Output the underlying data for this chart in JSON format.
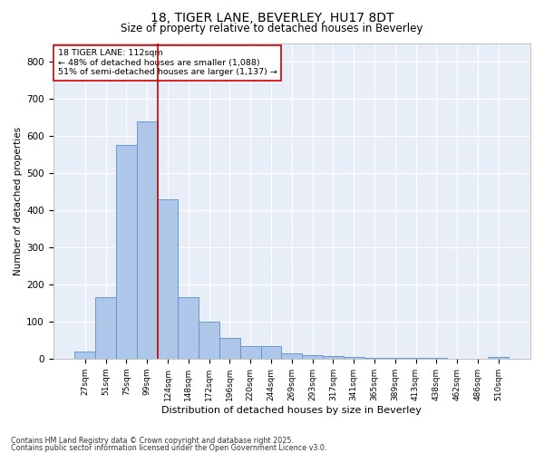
{
  "title1": "18, TIGER LANE, BEVERLEY, HU17 8DT",
  "title2": "Size of property relative to detached houses in Beverley",
  "xlabel": "Distribution of detached houses by size in Beverley",
  "ylabel": "Number of detached properties",
  "categories": [
    "27sqm",
    "51sqm",
    "75sqm",
    "99sqm",
    "124sqm",
    "148sqm",
    "172sqm",
    "196sqm",
    "220sqm",
    "244sqm",
    "269sqm",
    "293sqm",
    "317sqm",
    "341sqm",
    "365sqm",
    "389sqm",
    "413sqm",
    "438sqm",
    "462sqm",
    "486sqm",
    "510sqm"
  ],
  "values": [
    20,
    165,
    575,
    640,
    430,
    165,
    100,
    55,
    35,
    35,
    15,
    10,
    8,
    5,
    3,
    2,
    1,
    1,
    0,
    0,
    5
  ],
  "bar_color": "#aec6e8",
  "bar_edge_color": "#5b8fc9",
  "vline_color": "#cc0000",
  "annotation_text": "18 TIGER LANE: 112sqm\n← 48% of detached houses are smaller (1,088)\n51% of semi-detached houses are larger (1,137) →",
  "annotation_box_color": "#ffffff",
  "annotation_box_edge": "#cc0000",
  "ylim": [
    0,
    850
  ],
  "yticks": [
    0,
    100,
    200,
    300,
    400,
    500,
    600,
    700,
    800
  ],
  "background_color": "#e8eef8",
  "footer1": "Contains HM Land Registry data © Crown copyright and database right 2025.",
  "footer2": "Contains public sector information licensed under the Open Government Licence v3.0."
}
